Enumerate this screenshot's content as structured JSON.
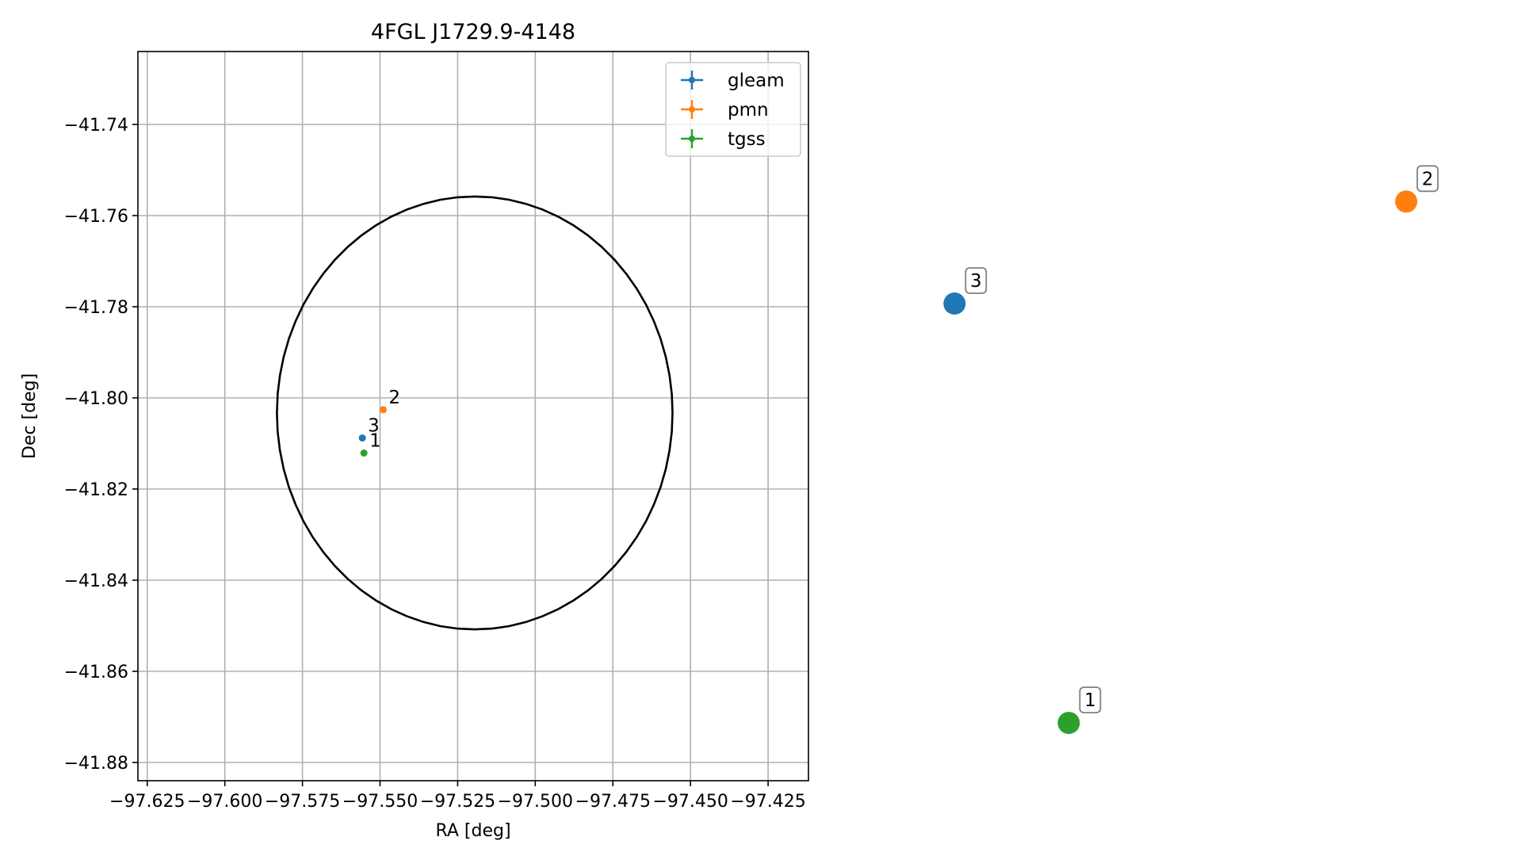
{
  "chart_data": [
    {
      "type": "scatter",
      "title": "4FGL J1729.9-4148",
      "xlabel": "RA [deg]",
      "ylabel": "Dec [deg]",
      "xlim": [
        -97.628,
        -97.412
      ],
      "ylim": [
        -41.884,
        -41.724
      ],
      "x_ticks": [
        -97.625,
        -97.6,
        -97.575,
        -97.55,
        -97.525,
        -97.5,
        -97.475,
        -97.45,
        -97.425
      ],
      "x_tick_labels": [
        "−97.625",
        "−97.600",
        "−97.575",
        "−97.550",
        "−97.525",
        "−97.500",
        "−97.475",
        "−97.450",
        "−97.425"
      ],
      "y_ticks": [
        -41.74,
        -41.76,
        -41.78,
        -41.8,
        -41.82,
        -41.84,
        -41.86,
        -41.88
      ],
      "y_tick_labels": [
        "−41.74",
        "−41.76",
        "−41.78",
        "−41.80",
        "−41.82",
        "−41.84",
        "−41.86",
        "−41.88"
      ],
      "grid": true,
      "legend_position": "top-right",
      "series": [
        {
          "name": "gleam",
          "color": "#1f77b4",
          "points": [
            {
              "x": -97.5557,
              "y": -41.8088,
              "label": "3"
            }
          ]
        },
        {
          "name": "pmn",
          "color": "#ff7f0e",
          "points": [
            {
              "x": -97.549,
              "y": -41.8026,
              "label": "2"
            }
          ]
        },
        {
          "name": "tgss",
          "color": "#2ca02c",
          "points": [
            {
              "x": -97.5552,
              "y": -41.8121,
              "label": "1"
            }
          ]
        }
      ],
      "error_circle": {
        "center_ra": -97.5195,
        "center_dec": -41.8033,
        "radius_deg": 0.0475,
        "color": "#000000"
      }
    },
    {
      "type": "scatter",
      "title": "",
      "axes_visible": false,
      "note_labels_boxed": true,
      "points": [
        {
          "label": "3",
          "color": "#1f77b4",
          "x": 0.06,
          "y": 0.8
        },
        {
          "label": "2",
          "color": "#ff7f0e",
          "x": 0.93,
          "y": 0.98
        },
        {
          "label": "1",
          "color": "#2ca02c",
          "x": 0.28,
          "y": 0.06
        }
      ]
    }
  ]
}
